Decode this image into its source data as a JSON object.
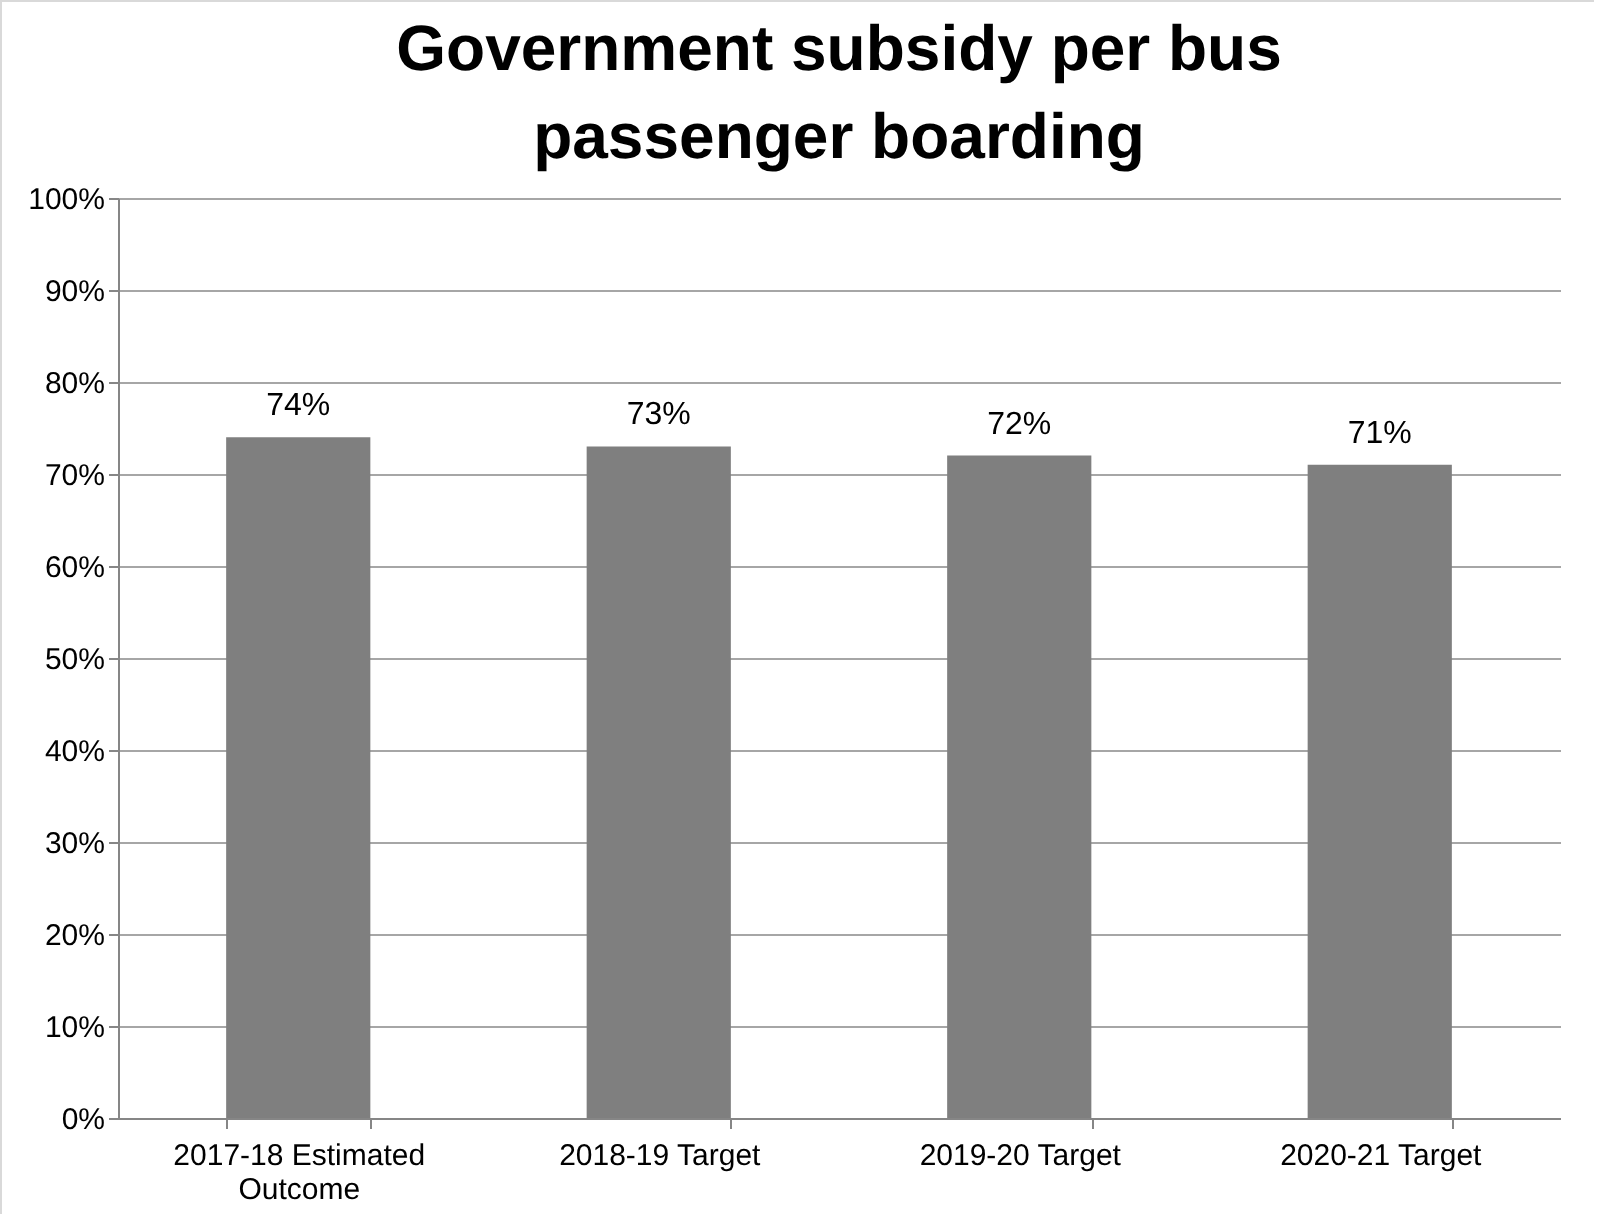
{
  "chart_data": {
    "type": "bar",
    "title": "Government subsidy per bus passenger boarding",
    "categories": [
      "2017-18 Estimated Outcome",
      "2018-19 Target",
      "2019-20 Target",
      "2020-21 Target"
    ],
    "values": [
      74,
      73,
      72,
      71
    ],
    "color": "#7f7f7f",
    "value_labels": [
      "74%",
      "73%",
      "72%",
      "71%"
    ],
    "ylim": [
      0,
      100
    ],
    "yticks": [
      {
        "value": 0,
        "label": "0%"
      },
      {
        "value": 10,
        "label": "10%"
      },
      {
        "value": 20,
        "label": "20%"
      },
      {
        "value": 30,
        "label": "30%"
      },
      {
        "value": 40,
        "label": "40%"
      },
      {
        "value": 50,
        "label": "50%"
      },
      {
        "value": 60,
        "label": "60%"
      },
      {
        "value": 70,
        "label": "70%"
      },
      {
        "value": 80,
        "label": "80%"
      },
      {
        "value": 90,
        "label": "90%"
      },
      {
        "value": 100,
        "label": "100%"
      }
    ],
    "grid": true
  }
}
